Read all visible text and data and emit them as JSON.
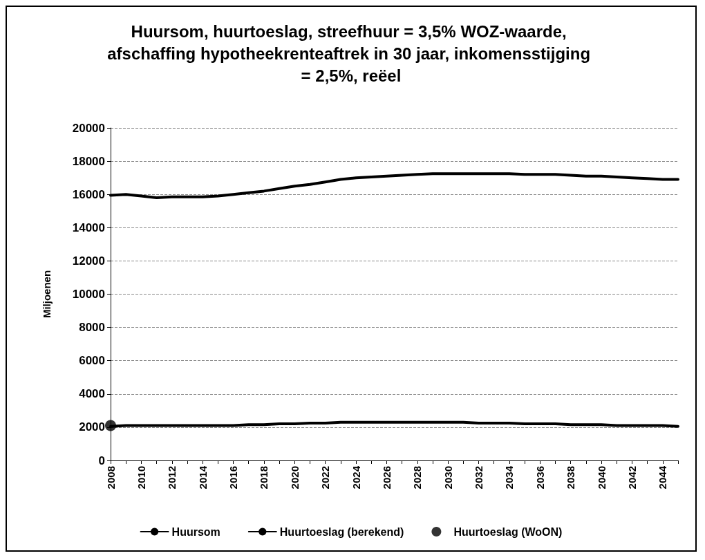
{
  "chart_data": {
    "type": "line",
    "title": "Huursom, huurtoeslag, streefhuur = 3,5% WOZ-waarde, afschaffing hypotheekrenteaftrek in 30 jaar, inkomensstijging = 2,5%, reëel",
    "ylabel": "Miljoenen",
    "categories": [
      "2008",
      null,
      "2010",
      null,
      "2012",
      null,
      "2014",
      null,
      "2016",
      null,
      "2018",
      null,
      "2020",
      null,
      "2022",
      null,
      "2024",
      null,
      "2026",
      null,
      "2028",
      null,
      "2030",
      null,
      "2032",
      null,
      "2034",
      null,
      "2036",
      null,
      "2038",
      null,
      "2040",
      null,
      "2042",
      null,
      "2044",
      null
    ],
    "ylim": [
      0,
      20000
    ],
    "yticks": [
      0,
      2000,
      4000,
      6000,
      8000,
      10000,
      12000,
      14000,
      16000,
      18000,
      20000
    ],
    "grid": "y",
    "legend": "bottom",
    "marker": "none",
    "series": [
      {
        "name": "Huursom",
        "color": "#000000",
        "values": [
          15950,
          16000,
          15900,
          15800,
          15850,
          15850,
          15850,
          15900,
          16000,
          16100,
          16200,
          16350,
          16500,
          16600,
          16750,
          16900,
          17000,
          17050,
          17100,
          17150,
          17200,
          17250,
          17250,
          17250,
          17250,
          17250,
          17250,
          17200,
          17200,
          17200,
          17150,
          17100,
          17100,
          17050,
          17000,
          16950,
          16900,
          16900
        ]
      },
      {
        "name": "Huurtoeslag (berekend)",
        "color": "#000000",
        "values": [
          2050,
          2100,
          2100,
          2100,
          2100,
          2100,
          2100,
          2100,
          2100,
          2150,
          2150,
          2200,
          2200,
          2250,
          2250,
          2300,
          2300,
          2300,
          2300,
          2300,
          2300,
          2300,
          2300,
          2300,
          2250,
          2250,
          2250,
          2200,
          2200,
          2200,
          2150,
          2150,
          2150,
          2100,
          2100,
          2100,
          2100,
          2050
        ]
      },
      {
        "name": "Huurtoeslag (WoON)",
        "type": "scatter",
        "marker": "circle",
        "color": "#000000",
        "values": [
          2100,
          null,
          null,
          null,
          null,
          null,
          null,
          null,
          null,
          null,
          null,
          null,
          null,
          null,
          null,
          null,
          null,
          null,
          null,
          null,
          null,
          null,
          null,
          null,
          null,
          null,
          null,
          null,
          null,
          null,
          null,
          null,
          null,
          null,
          null,
          null,
          null,
          null
        ]
      }
    ]
  }
}
